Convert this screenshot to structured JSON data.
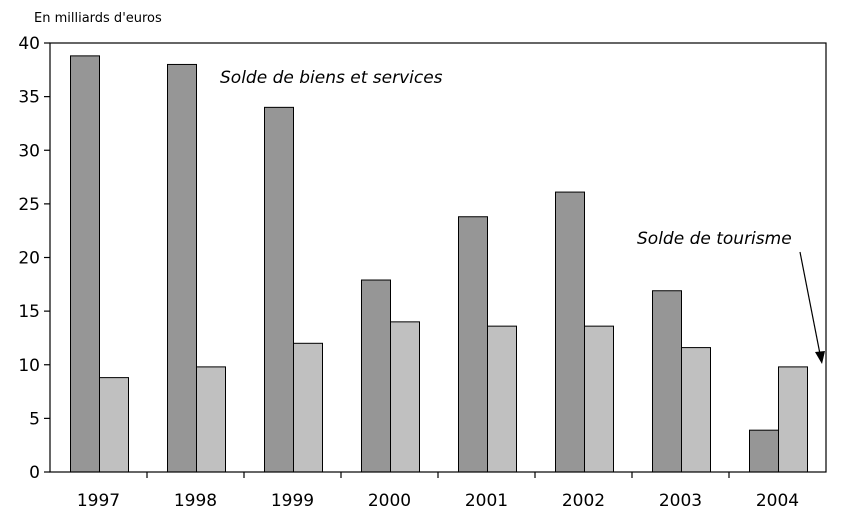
{
  "chart_data": {
    "type": "bar",
    "unit_label": "En milliards d'euros",
    "categories": [
      "1997",
      "1998",
      "1999",
      "2000",
      "2001",
      "2002",
      "2003",
      "2004"
    ],
    "series": [
      {
        "name": "Solde de biens et services",
        "color": "#969696",
        "values": [
          38.8,
          38.0,
          34.0,
          17.9,
          23.8,
          26.1,
          16.9,
          3.9
        ]
      },
      {
        "name": "Solde de tourisme",
        "color": "#c0c0c0",
        "values": [
          8.8,
          9.8,
          12.0,
          14.0,
          13.6,
          13.6,
          11.6,
          9.8
        ]
      }
    ],
    "ylim": [
      0,
      40
    ],
    "yticks": [
      0,
      5,
      10,
      15,
      20,
      25,
      30,
      35,
      40
    ],
    "grid": false,
    "legend": "none"
  }
}
